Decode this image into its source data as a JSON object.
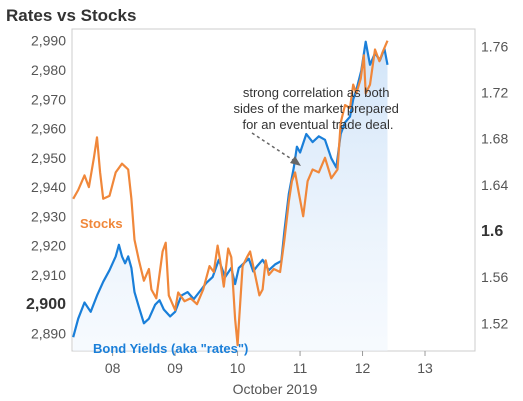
{
  "chart_data": {
    "type": "line",
    "title": "Rates vs Stocks",
    "xlabel": "October 2019",
    "x_ticks": [
      "08",
      "09",
      "10",
      "11",
      "12",
      "13"
    ],
    "x_range_days": [
      7.35,
      13.8
    ],
    "left_axis": {
      "ticks": [
        "2,890",
        "2,900",
        "2,910",
        "2,920",
        "2,930",
        "2,940",
        "2,950",
        "2,960",
        "2,970",
        "2,980",
        "2,990"
      ],
      "emphasized_tick": "2,900",
      "range": [
        2884,
        2994
      ]
    },
    "right_axis": {
      "ticks": [
        "1.52",
        "1.56",
        "1.6",
        "1.64",
        "1.68",
        "1.72",
        "1.76"
      ],
      "emphasized_tick": "1.6",
      "range": [
        1.496,
        1.775
      ]
    },
    "annotation": "strong correlation as both sides of the market prepared for an eventual trade deal.",
    "series": [
      {
        "name": "Stocks",
        "axis": "left",
        "color": "#f0873a",
        "points": [
          [
            7.37,
            2936
          ],
          [
            7.45,
            2939
          ],
          [
            7.55,
            2944
          ],
          [
            7.62,
            2940
          ],
          [
            7.7,
            2950
          ],
          [
            7.75,
            2957
          ],
          [
            7.8,
            2945
          ],
          [
            7.85,
            2936
          ],
          [
            7.95,
            2937
          ],
          [
            8.05,
            2945
          ],
          [
            8.15,
            2948
          ],
          [
            8.25,
            2946
          ],
          [
            8.3,
            2936
          ],
          [
            8.35,
            2922
          ],
          [
            8.42,
            2915
          ],
          [
            8.5,
            2908
          ],
          [
            8.58,
            2912
          ],
          [
            8.62,
            2905
          ],
          [
            8.7,
            2902
          ],
          [
            8.8,
            2918
          ],
          [
            8.85,
            2921
          ],
          [
            8.9,
            2903
          ],
          [
            9.0,
            2898
          ],
          [
            9.05,
            2904
          ],
          [
            9.15,
            2901
          ],
          [
            9.25,
            2902
          ],
          [
            9.35,
            2900
          ],
          [
            9.45,
            2905
          ],
          [
            9.55,
            2913
          ],
          [
            9.62,
            2911
          ],
          [
            9.68,
            2920
          ],
          [
            9.72,
            2915
          ],
          [
            9.78,
            2906
          ],
          [
            9.85,
            2919
          ],
          [
            9.9,
            2916
          ],
          [
            9.96,
            2895
          ],
          [
            10.0,
            2886
          ],
          [
            10.02,
            2893
          ],
          [
            10.08,
            2913
          ],
          [
            10.15,
            2916
          ],
          [
            10.2,
            2918
          ],
          [
            10.28,
            2910
          ],
          [
            10.35,
            2903
          ],
          [
            10.4,
            2905
          ],
          [
            10.45,
            2915
          ],
          [
            10.5,
            2910
          ],
          [
            10.58,
            2912
          ],
          [
            10.68,
            2911
          ],
          [
            10.75,
            2922
          ],
          [
            10.82,
            2935
          ],
          [
            10.87,
            2942
          ],
          [
            10.92,
            2945
          ],
          [
            10.98,
            2938
          ],
          [
            11.05,
            2930
          ],
          [
            11.12,
            2942
          ],
          [
            11.2,
            2946
          ],
          [
            11.3,
            2945
          ],
          [
            11.4,
            2950
          ],
          [
            11.5,
            2943
          ],
          [
            11.6,
            2946
          ],
          [
            11.65,
            2962
          ],
          [
            11.72,
            2968
          ],
          [
            11.8,
            2967
          ],
          [
            11.85,
            2975
          ],
          [
            11.9,
            2972
          ],
          [
            11.97,
            2977
          ],
          [
            12.02,
            2985
          ],
          [
            12.05,
            2972
          ],
          [
            12.12,
            2975
          ],
          [
            12.2,
            2987
          ],
          [
            12.27,
            2983
          ],
          [
            12.32,
            2986
          ],
          [
            12.4,
            2990
          ]
        ]
      },
      {
        "name": "Bond Yields (aka \"rates\")",
        "axis": "right",
        "color": "#1a7fd9",
        "points": [
          [
            7.37,
            1.508
          ],
          [
            7.45,
            1.524
          ],
          [
            7.55,
            1.538
          ],
          [
            7.65,
            1.53
          ],
          [
            7.75,
            1.544
          ],
          [
            7.85,
            1.556
          ],
          [
            7.95,
            1.566
          ],
          [
            8.05,
            1.578
          ],
          [
            8.1,
            1.588
          ],
          [
            8.15,
            1.578
          ],
          [
            8.2,
            1.572
          ],
          [
            8.25,
            1.578
          ],
          [
            8.3,
            1.568
          ],
          [
            8.35,
            1.547
          ],
          [
            8.42,
            1.534
          ],
          [
            8.5,
            1.52
          ],
          [
            8.58,
            1.524
          ],
          [
            8.68,
            1.536
          ],
          [
            8.75,
            1.54
          ],
          [
            8.82,
            1.532
          ],
          [
            8.92,
            1.526
          ],
          [
            9.0,
            1.53
          ],
          [
            9.1,
            1.544
          ],
          [
            9.2,
            1.547
          ],
          [
            9.3,
            1.541
          ],
          [
            9.4,
            1.548
          ],
          [
            9.5,
            1.555
          ],
          [
            9.6,
            1.56
          ],
          [
            9.7,
            1.575
          ],
          [
            9.8,
            1.56
          ],
          [
            9.9,
            1.568
          ],
          [
            9.96,
            1.554
          ],
          [
            10.02,
            1.568
          ],
          [
            10.1,
            1.572
          ],
          [
            10.18,
            1.576
          ],
          [
            10.25,
            1.565
          ],
          [
            10.32,
            1.57
          ],
          [
            10.4,
            1.575
          ],
          [
            10.5,
            1.566
          ],
          [
            10.6,
            1.571
          ],
          [
            10.7,
            1.574
          ],
          [
            10.75,
            1.6
          ],
          [
            10.82,
            1.632
          ],
          [
            10.9,
            1.655
          ],
          [
            10.95,
            1.673
          ],
          [
            11.0,
            1.668
          ],
          [
            11.1,
            1.684
          ],
          [
            11.2,
            1.677
          ],
          [
            11.3,
            1.682
          ],
          [
            11.4,
            1.679
          ],
          [
            11.5,
            1.663
          ],
          [
            11.58,
            1.655
          ],
          [
            11.65,
            1.684
          ],
          [
            11.72,
            1.694
          ],
          [
            11.8,
            1.699
          ],
          [
            11.85,
            1.714
          ],
          [
            11.9,
            1.722
          ],
          [
            11.98,
            1.739
          ],
          [
            12.05,
            1.764
          ],
          [
            12.12,
            1.744
          ],
          [
            12.2,
            1.754
          ],
          [
            12.28,
            1.748
          ],
          [
            12.35,
            1.758
          ],
          [
            12.4,
            1.744
          ]
        ]
      }
    ]
  }
}
